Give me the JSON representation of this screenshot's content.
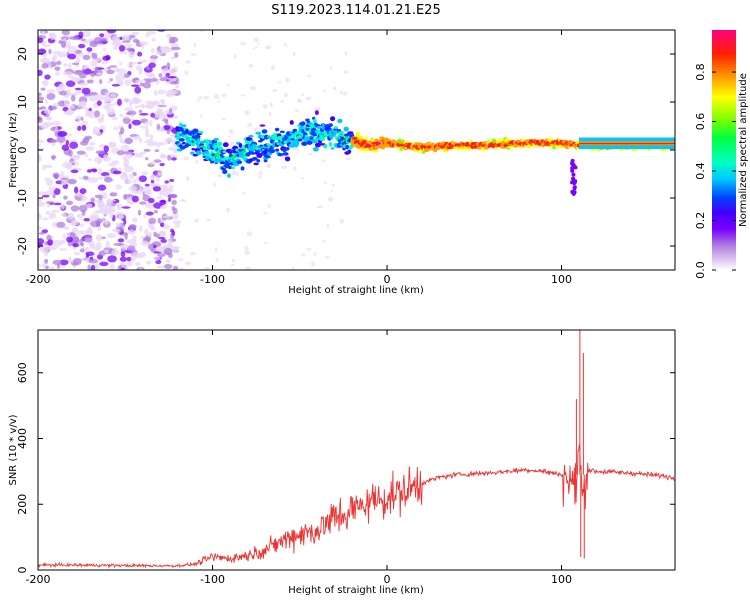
{
  "figure_title": "S119.2023.114.01.21.E25",
  "chart_data": [
    {
      "type": "heatmap",
      "title": "S119.2023.114.01.21.E25",
      "xlabel": "Height of straight line (km)",
      "ylabel": "Frequency (Hz)",
      "xlim": [
        -200,
        165
      ],
      "ylim": [
        -25,
        25
      ],
      "x_ticks": [
        -200,
        -100,
        0,
        100
      ],
      "y_ticks": [
        -20,
        -10,
        0,
        10,
        20
      ],
      "colorbar": {
        "label": "Normalized spectral amplitude",
        "range": [
          0,
          0.97
        ],
        "ticks": [
          0.0,
          0.2,
          0.4,
          0.6,
          0.8
        ],
        "tick_labels": [
          "0.0",
          "0.2",
          "0.4",
          "0.6",
          "0.8"
        ],
        "colormap": [
          "#ffffff",
          "#e8d6f5",
          "#b07fe0",
          "#7a00ff",
          "#4000ff",
          "#0040ff",
          "#00c8ff",
          "#00ffc0",
          "#00ff40",
          "#80ff00",
          "#ffff00",
          "#ffa000",
          "#ff2000",
          "#ff0080"
        ]
      },
      "ridge": {
        "description_points_x": [
          -120,
          -110,
          -100,
          -90,
          -80,
          -70,
          -60,
          -50,
          -40,
          -30,
          -20,
          -10,
          0,
          10,
          20,
          40,
          60,
          80,
          100,
          110,
          130,
          165
        ],
        "frequency_hz": [
          3,
          2,
          0,
          -2,
          0,
          1,
          2,
          3,
          4,
          3,
          2,
          1,
          1.5,
          1,
          0.5,
          1,
          1,
          1.5,
          1.5,
          1,
          1,
          1
        ]
      }
    },
    {
      "type": "line",
      "xlabel": "Height of straight line (km)",
      "ylabel": "SNR (10 * v/v)",
      "xlim": [
        -200,
        165
      ],
      "ylim": [
        0,
        730
      ],
      "x_ticks": [
        -200,
        -100,
        0,
        100
      ],
      "y_ticks": [
        0,
        200,
        400,
        600
      ],
      "line_color": "#ee3333",
      "series": [
        {
          "x": [
            -200,
            -180,
            -160,
            -140,
            -120,
            -110,
            -100,
            -90,
            -80,
            -70,
            -60,
            -50,
            -40,
            -30,
            -20,
            -10,
            0,
            10,
            20,
            30,
            40,
            60,
            80,
            90,
            100,
            105,
            108,
            110,
            112,
            115,
            120,
            140,
            160,
            165
          ],
          "y": [
            15,
            15,
            14,
            13,
            13,
            18,
            40,
            35,
            45,
            60,
            90,
            110,
            120,
            160,
            180,
            210,
            220,
            240,
            265,
            282,
            290,
            296,
            305,
            300,
            290,
            270,
            250,
            380,
            220,
            305,
            300,
            295,
            285,
            280
          ]
        }
      ],
      "spikes": [
        {
          "x": 110.5,
          "y": 730
        },
        {
          "x": 112.5,
          "y": 660
        },
        {
          "x": 108.5,
          "y": 520
        },
        {
          "x": 111.0,
          "y": 40
        },
        {
          "x": 113.0,
          "y": 35
        }
      ]
    }
  ]
}
